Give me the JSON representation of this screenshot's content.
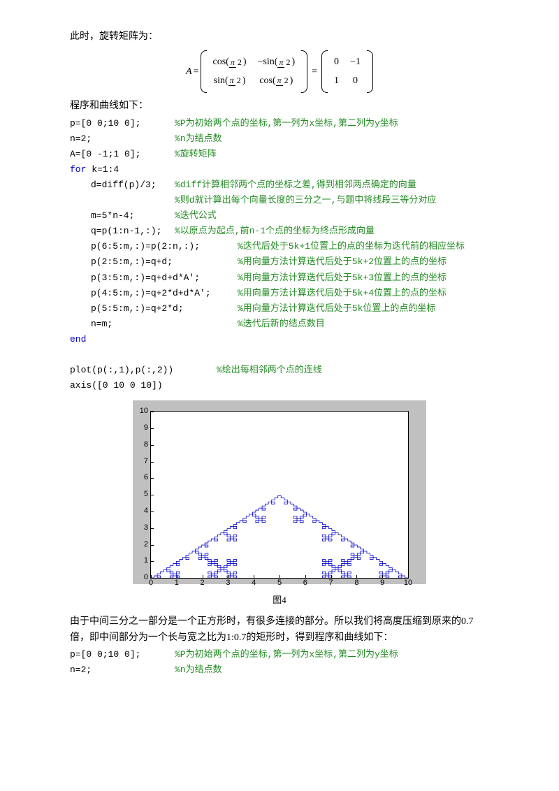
{
  "intro1": "此时，旋转矩阵为：",
  "matrix_eq": {
    "lhs": "A =",
    "left": {
      "cells": [
        [
          "cos(π/2)",
          "−sin(π/2)"
        ],
        [
          "sin(π/2)",
          "cos(π/2)"
        ]
      ]
    },
    "eq": "=",
    "right": {
      "cells": [
        [
          "0",
          "−1"
        ],
        [
          "1",
          "0"
        ]
      ]
    }
  },
  "intro2": "程序和曲线如下：",
  "code1": [
    {
      "t": "p=[0 0;10 0];",
      "c": "%P为初始两个点的坐标,第一列为x坐标,第二列为y坐标",
      "col1": true
    },
    {
      "t": "n=2;",
      "c": "%n为结点数",
      "col1": true
    },
    {
      "t": "A=[0 -1;1 0];",
      "c": "%旋转矩阵",
      "col1": true
    },
    {
      "kw": "for",
      "t": " k=1:4"
    },
    {
      "t": "d=diff(p)/3;",
      "c": "%diff计算相邻两个点的坐标之差,得到相邻两点确定的向量",
      "ind": 1,
      "col1w": 120
    },
    {
      "t": "",
      "c": "%则d就计算出每个向量长度的三分之一,与题中将线段三等分对应",
      "ind": 1,
      "col1w": 120
    },
    {
      "t": "m=5*n-4;",
      "c": "%迭代公式",
      "ind": 1,
      "col1w": 120
    },
    {
      "t": "q=p(1:n-1,:);",
      "c": "%以原点为起点,前n-1个点的坐标为终点形成向量",
      "ind": 1,
      "col1w": 120
    },
    {
      "t": "p(6:5:m,:)=p(2:n,:);",
      "c": "%迭代后处于5k+1位置上的点的坐标为迭代前的相应坐标",
      "ind": 1,
      "col1w": 210
    },
    {
      "t": "p(2:5:m,:)=q+d;",
      "c": "%用向量方法计算迭代后处于5k+2位置上的点的坐标",
      "ind": 1,
      "col1w": 210
    },
    {
      "t": "p(3:5:m,:)=q+d+d*A';",
      "c": "%用向量方法计算迭代后处于5k+3位置上的点的坐标",
      "ind": 1,
      "col1w": 210
    },
    {
      "t": "p(4:5:m,:)=q+2*d+d*A';",
      "c": "%用向量方法计算迭代后处于5k+4位置上的点的坐标",
      "ind": 1,
      "col1w": 210
    },
    {
      "t": "p(5:5:m,:)=q+2*d;",
      "c": "%用向量方法计算迭代后处于5k位置上的点的坐标",
      "ind": 1,
      "col1w": 210
    },
    {
      "t": "n=m;",
      "c": "%迭代后新的结点数目",
      "ind": 1,
      "col1w": 210
    },
    {
      "kw": "end"
    },
    {
      "blank": true
    },
    {
      "t": "plot(p(:,1),p(:,2))",
      "c": "%绘出每相邻两个点的连线",
      "col1w": 210
    },
    {
      "t": "axis([0 10 0 10])"
    }
  ],
  "figure": {
    "caption": "图4",
    "xlim": [
      0,
      10
    ],
    "ylim": [
      0,
      10
    ],
    "xticks": [
      0,
      1,
      2,
      3,
      4,
      5,
      6,
      7,
      8,
      9,
      10
    ],
    "yticks": [
      0,
      1,
      2,
      3,
      4,
      5,
      6,
      7,
      8,
      9,
      10
    ],
    "line_color": "#0000cc",
    "background_color": "#c0c0c0",
    "axes_color": "#ffffff",
    "iterations": 4,
    "angle_deg": 90
  },
  "para2": "由于中间三分之一部分是一个正方形时，有很多连接的部分。所以我们将高度压缩到原来的0.7倍，即中间部分为一个长与宽之比为1:0.7的矩形时，得到程序和曲线如下：",
  "code2": [
    {
      "t": "p=[0 0;10 0];",
      "c": "%P为初始两个点的坐标,第一列为x坐标,第二列为y坐标",
      "col1": true
    },
    {
      "t": "n=2;",
      "c": "%n为结点数",
      "col1": true
    }
  ]
}
